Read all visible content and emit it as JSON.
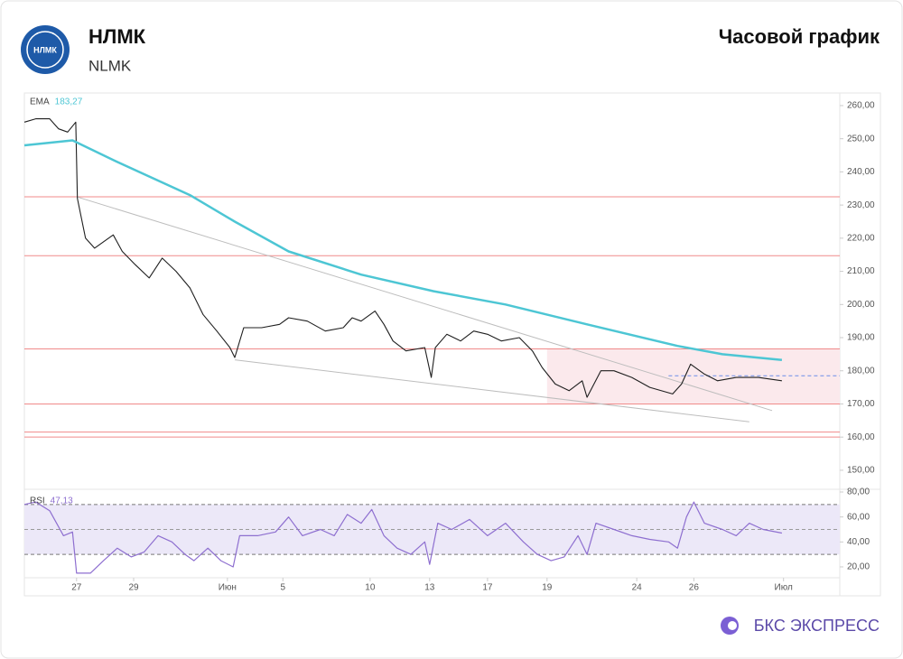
{
  "header": {
    "logo_text": "НЛМК",
    "title": "НЛМК",
    "subtitle": "NLMK",
    "chart_label": "Часовой график"
  },
  "footer": {
    "brand": "БКС ЭКСПРЕСС"
  },
  "chart_data": [
    {
      "type": "line",
      "xlim": [
        0,
        100
      ],
      "ylim": [
        144.8,
        263.8
      ],
      "yticks": [
        {
          "value": 150,
          "label": "150,00"
        },
        {
          "value": 160,
          "label": "160,00"
        },
        {
          "value": 170,
          "label": "170,00"
        },
        {
          "value": 180,
          "label": "180,00"
        },
        {
          "value": 190,
          "label": "190,00"
        },
        {
          "value": 200,
          "label": "200,00"
        },
        {
          "value": 210,
          "label": "210,00"
        },
        {
          "value": 220,
          "label": "220,00"
        },
        {
          "value": 230,
          "label": "230,00"
        },
        {
          "value": 240,
          "label": "240,00"
        },
        {
          "value": 250,
          "label": "250,00"
        },
        {
          "value": 260,
          "label": "260,00"
        }
      ],
      "series": [
        {
          "color": "#1f1f1f",
          "x": [
            0,
            1.4,
            3.1,
            4.2,
            5.3,
            6.3,
            6.5,
            7.5,
            8.6,
            10.9,
            12,
            13.6,
            15.3,
            16.9,
            18.6,
            20.3,
            21.9,
            23.6,
            25.2,
            25.8,
            26.9,
            29.1,
            31.3,
            32.4,
            34.7,
            36.9,
            39.1,
            40.2,
            41.3,
            43,
            44.1,
            45.2,
            46.8,
            49.1,
            49.9,
            50.4,
            51.8,
            53.5,
            55.1,
            56.8,
            58.5,
            60.7,
            62.3,
            63.5,
            65.1,
            66.8,
            68.4,
            69,
            70.7,
            72.3,
            74.5,
            76.7,
            79.5,
            80.6,
            81.7,
            83.4,
            85,
            87.3,
            90,
            92.9
          ],
          "values": [
            255,
            256,
            256,
            253,
            252,
            255,
            232,
            220,
            217,
            221,
            216,
            212,
            208,
            214,
            210,
            205,
            197,
            192,
            187,
            184,
            193,
            193,
            194,
            196,
            195,
            192,
            193,
            196,
            195,
            198,
            194,
            189,
            186,
            187,
            178,
            187,
            191,
            189,
            192,
            191,
            189,
            190,
            186,
            181,
            176,
            174,
            177,
            172,
            180,
            180,
            178,
            175,
            173,
            176,
            182,
            179,
            177,
            178,
            178,
            177
          ]
        },
        {
          "name": "EMA",
          "color": "#4dc6d4",
          "x": [
            0,
            5.9,
            11.4,
            20.3,
            25.8,
            32.4,
            41.3,
            50.2,
            59,
            69,
            80.1,
            85.6,
            92.9
          ],
          "values": [
            248,
            249.5,
            243,
            233,
            225,
            216,
            209,
            204,
            200,
            194,
            187.5,
            185,
            183.27
          ],
          "value_labels": [
            null,
            null,
            null,
            null,
            null,
            null,
            null,
            null,
            null,
            null,
            null,
            null,
            "183,27"
          ]
        }
      ],
      "levels": [
        {
          "value": 232.5,
          "color": "#f08a8a"
        },
        {
          "value": 214.7,
          "color": "#f08a8a"
        },
        {
          "value": 186.6,
          "color": "#f08a8a"
        },
        {
          "value": 170,
          "color": "#f08a8a"
        },
        {
          "value": 161.5,
          "color": "#f08a8a"
        },
        {
          "value": 160,
          "color": "#f08a8a"
        },
        {
          "value": 178.5,
          "color": "#6d8ee8",
          "dash": true,
          "xlim": [
            79,
            100
          ]
        }
      ],
      "zones": [
        {
          "xlim": [
            64.1,
            100
          ],
          "ylim": [
            170,
            186.6
          ],
          "color": "#fbe9ec"
        }
      ],
      "trendlines": [
        {
          "x": [
            6.4,
            91.7
          ],
          "values": [
            232.5,
            168
          ],
          "color": "#bdbdbd"
        },
        {
          "x": [
            25.8,
            88.9
          ],
          "values": [
            183.3,
            164.6
          ],
          "color": "#bdbdbd"
        }
      ]
    },
    {
      "type": "line",
      "xlim": [
        0,
        100
      ],
      "ylim": [
        11.3,
        80
      ],
      "yticks": [
        {
          "value": 20,
          "label": "20,00"
        },
        {
          "value": 40,
          "label": "40,00"
        },
        {
          "value": 60,
          "label": "60,00"
        },
        {
          "value": 80,
          "label": "80,00"
        }
      ],
      "xticks": [
        {
          "value": 6.4,
          "label": "27"
        },
        {
          "value": 13.4,
          "label": "29"
        },
        {
          "value": 24.9,
          "label": "Июн"
        },
        {
          "value": 31.7,
          "label": "5"
        },
        {
          "value": 42.4,
          "label": "10"
        },
        {
          "value": 49.7,
          "label": "13"
        },
        {
          "value": 56.8,
          "label": "17"
        },
        {
          "value": 64.1,
          "label": "19"
        },
        {
          "value": 75.1,
          "label": "24"
        },
        {
          "value": 82.1,
          "label": "26"
        },
        {
          "value": 93.1,
          "label": "Июл"
        }
      ],
      "series": [
        {
          "name": "RSI",
          "color": "#8e6fd0",
          "x": [
            0,
            1.4,
            3.1,
            4.8,
            5.9,
            6.4,
            8.1,
            9.7,
            11.4,
            13.1,
            14.7,
            16.4,
            18.1,
            19.7,
            20.8,
            22.5,
            24.1,
            25.6,
            26.4,
            28.6,
            30.8,
            32.4,
            34.1,
            36.3,
            38,
            39.6,
            41.3,
            42.6,
            44.1,
            45.7,
            47.4,
            49.1,
            49.7,
            50.7,
            52.4,
            54.6,
            56.8,
            59,
            61.2,
            62.9,
            64.6,
            66.2,
            67.9,
            69,
            70.1,
            72.3,
            74.5,
            76.7,
            79,
            80.1,
            81.2,
            82.1,
            83.4,
            85.6,
            87.3,
            88.9,
            90.6,
            92.9
          ],
          "values": [
            70,
            72,
            65,
            45,
            48,
            15,
            15,
            25,
            35,
            28,
            32,
            45,
            40,
            30,
            25,
            35,
            25,
            20,
            45,
            45,
            48,
            60,
            45,
            50,
            45,
            62,
            55,
            66,
            45,
            35,
            30,
            40,
            22,
            55,
            50,
            58,
            45,
            55,
            40,
            30,
            25,
            28,
            45,
            30,
            55,
            50,
            45,
            42,
            40,
            35,
            60,
            72,
            55,
            50,
            45,
            55,
            50,
            47.13
          ],
          "value_labels": [
            null,
            null,
            null,
            null,
            null,
            null,
            null,
            null,
            null,
            null,
            null,
            null,
            null,
            null,
            null,
            null,
            null,
            null,
            null,
            null,
            null,
            null,
            null,
            null,
            null,
            null,
            null,
            null,
            null,
            null,
            null,
            null,
            null,
            null,
            null,
            null,
            null,
            null,
            null,
            null,
            null,
            null,
            null,
            null,
            null,
            null,
            null,
            null,
            null,
            null,
            null,
            null,
            null,
            null,
            null,
            null,
            null,
            "47,13"
          ]
        }
      ],
      "zones": [
        {
          "ylim": [
            30,
            70
          ],
          "xlim": [
            0,
            100
          ],
          "color": "#ece8f8"
        }
      ],
      "levels": [
        {
          "value": 70,
          "color": "#777777",
          "dash": true
        },
        {
          "value": 50,
          "color": "#9a9a9a",
          "dash": true
        },
        {
          "value": 30,
          "color": "#777777",
          "dash": true
        }
      ]
    }
  ]
}
